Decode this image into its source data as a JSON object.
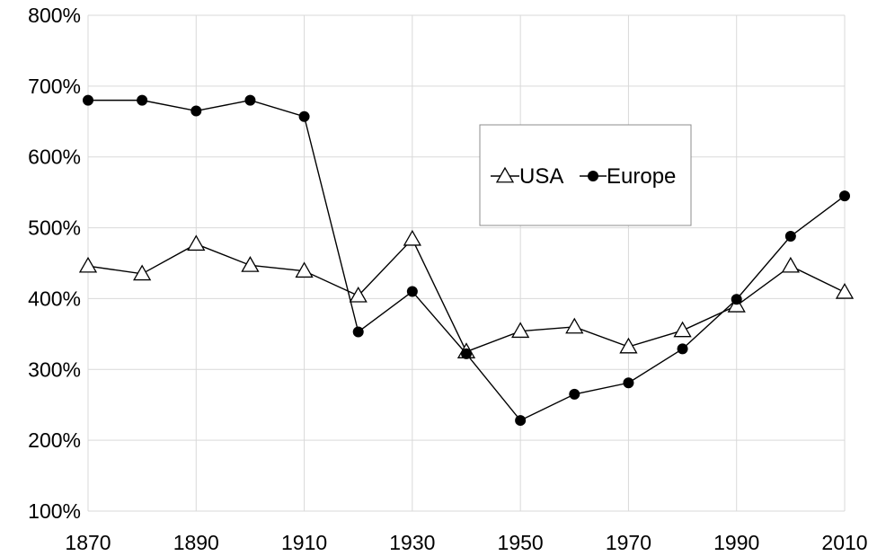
{
  "chart_data": {
    "type": "line",
    "x": [
      1870,
      1880,
      1890,
      1900,
      1910,
      1920,
      1930,
      1940,
      1950,
      1960,
      1970,
      1980,
      1990,
      2000,
      2010
    ],
    "x_tick_labels": [
      "1870",
      "1890",
      "1910",
      "1930",
      "1950",
      "1970",
      "1990",
      "2010"
    ],
    "y_tick_labels": [
      "100%",
      "200%",
      "300%",
      "400%",
      "500%",
      "600%",
      "700%",
      "800%"
    ],
    "xlim": [
      1870,
      2010
    ],
    "ylim": [
      100,
      800
    ],
    "y_unit": "%",
    "grid": true,
    "legend_position": "top-center-right",
    "series": [
      {
        "name": "USA",
        "marker": "open-triangle",
        "color": "#000000",
        "values": [
          446,
          435,
          477,
          447,
          439,
          404,
          484,
          325,
          354,
          360,
          332,
          355,
          390,
          446,
          409
        ]
      },
      {
        "name": "Europe",
        "marker": "filled-circle",
        "color": "#000000",
        "values": [
          680,
          680,
          665,
          680,
          657,
          353,
          410,
          322,
          228,
          265,
          281,
          329,
          399,
          488,
          545
        ]
      }
    ]
  }
}
